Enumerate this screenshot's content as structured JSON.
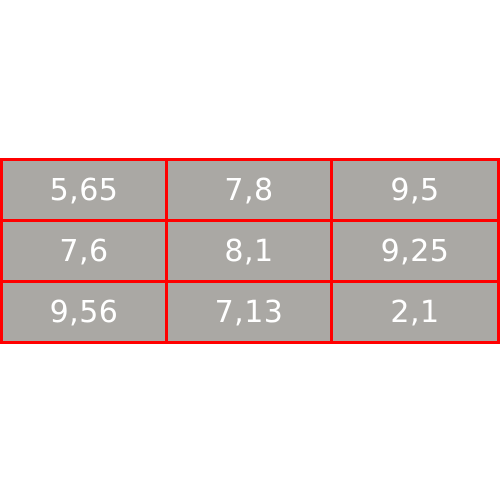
{
  "table": {
    "rows": [
      [
        "5,65",
        "7,8",
        "9,5"
      ],
      [
        "7,6",
        "8,1",
        "9,25"
      ],
      [
        "9,56",
        "7,13",
        "2,1"
      ]
    ]
  },
  "colors": {
    "border": "#ff0000",
    "cell_background": "#aaa8a4",
    "text": "#ffffff"
  }
}
